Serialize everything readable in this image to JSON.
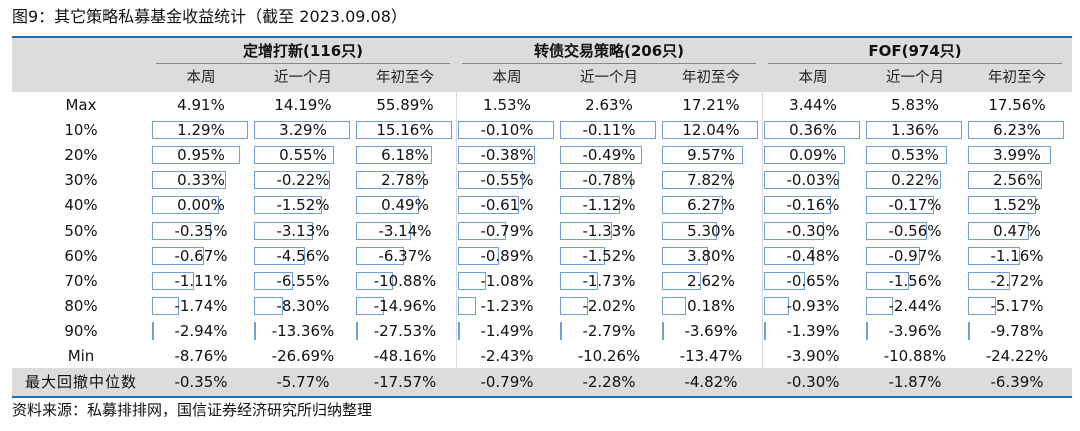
{
  "caption": "图9：其它策略私募基金收益统计（截至 2023.09.08）",
  "source": "资料来源：私募排排网，国信证券经济研究所归纳整理",
  "groups": [
    "定增打新(116只)",
    "转债交易策略(206只)",
    "FOF(974只)"
  ],
  "subheaders": [
    "本周",
    "近一个月",
    "年初至今",
    "本周",
    "近一个月",
    "年初至今",
    "本周",
    "近一个月",
    "年初至今"
  ],
  "rows": [
    {
      "label": "Max",
      "values": [
        "4.91%",
        "14.19%",
        "55.89%",
        "1.53%",
        "2.63%",
        "17.21%",
        "3.44%",
        "5.83%",
        "17.56%"
      ]
    },
    {
      "label": "10%",
      "values": [
        "1.29%",
        "3.29%",
        "15.16%",
        "-0.10%",
        "-0.11%",
        "12.04%",
        "0.36%",
        "1.36%",
        "6.23%"
      ]
    },
    {
      "label": "20%",
      "values": [
        "0.95%",
        "0.55%",
        "6.18%",
        "-0.38%",
        "-0.49%",
        "9.57%",
        "0.09%",
        "0.53%",
        "3.99%"
      ]
    },
    {
      "label": "30%",
      "values": [
        "0.33%",
        "-0.22%",
        "2.78%",
        "-0.55%",
        "-0.78%",
        "7.82%",
        "-0.03%",
        "0.22%",
        "2.56%"
      ]
    },
    {
      "label": "40%",
      "values": [
        "0.00%",
        "-1.52%",
        "0.49%",
        "-0.61%",
        "-1.12%",
        "6.27%",
        "-0.16%",
        "-0.17%",
        "1.52%"
      ]
    },
    {
      "label": "50%",
      "values": [
        "-0.35%",
        "-3.13%",
        "-3.14%",
        "-0.79%",
        "-1.33%",
        "5.30%",
        "-0.30%",
        "-0.56%",
        "0.47%"
      ]
    },
    {
      "label": "60%",
      "values": [
        "-0.67%",
        "-4.56%",
        "-6.37%",
        "-0.89%",
        "-1.52%",
        "3.80%",
        "-0.48%",
        "-0.97%",
        "-1.16%"
      ]
    },
    {
      "label": "70%",
      "values": [
        "-1.11%",
        "-6.55%",
        "-10.88%",
        "-1.08%",
        "-1.73%",
        "2.62%",
        "-0.65%",
        "-1.56%",
        "-2.72%"
      ]
    },
    {
      "label": "80%",
      "values": [
        "-1.74%",
        "-8.30%",
        "-14.96%",
        "-1.23%",
        "-2.02%",
        "0.18%",
        "-0.93%",
        "-2.44%",
        "-5.17%"
      ]
    },
    {
      "label": "90%",
      "values": [
        "-2.94%",
        "-13.36%",
        "-27.53%",
        "-1.49%",
        "-2.79%",
        "-3.69%",
        "-1.39%",
        "-3.96%",
        "-9.78%"
      ]
    },
    {
      "label": "Min",
      "values": [
        "-8.76%",
        "-26.69%",
        "-48.16%",
        "-2.43%",
        "-10.26%",
        "-13.47%",
        "-3.90%",
        "-10.88%",
        "-24.22%"
      ]
    }
  ],
  "summary": {
    "label": "最大回撤中位数",
    "values": [
      "-0.35%",
      "-5.77%",
      "-17.57%",
      "-0.79%",
      "-2.28%",
      "-4.82%",
      "-0.30%",
      "-1.87%",
      "-6.39%"
    ]
  },
  "colors": {
    "border": "#1f6fb8",
    "bar_outline": "#6e9fd6",
    "header_bg": "#dcdcdc"
  }
}
